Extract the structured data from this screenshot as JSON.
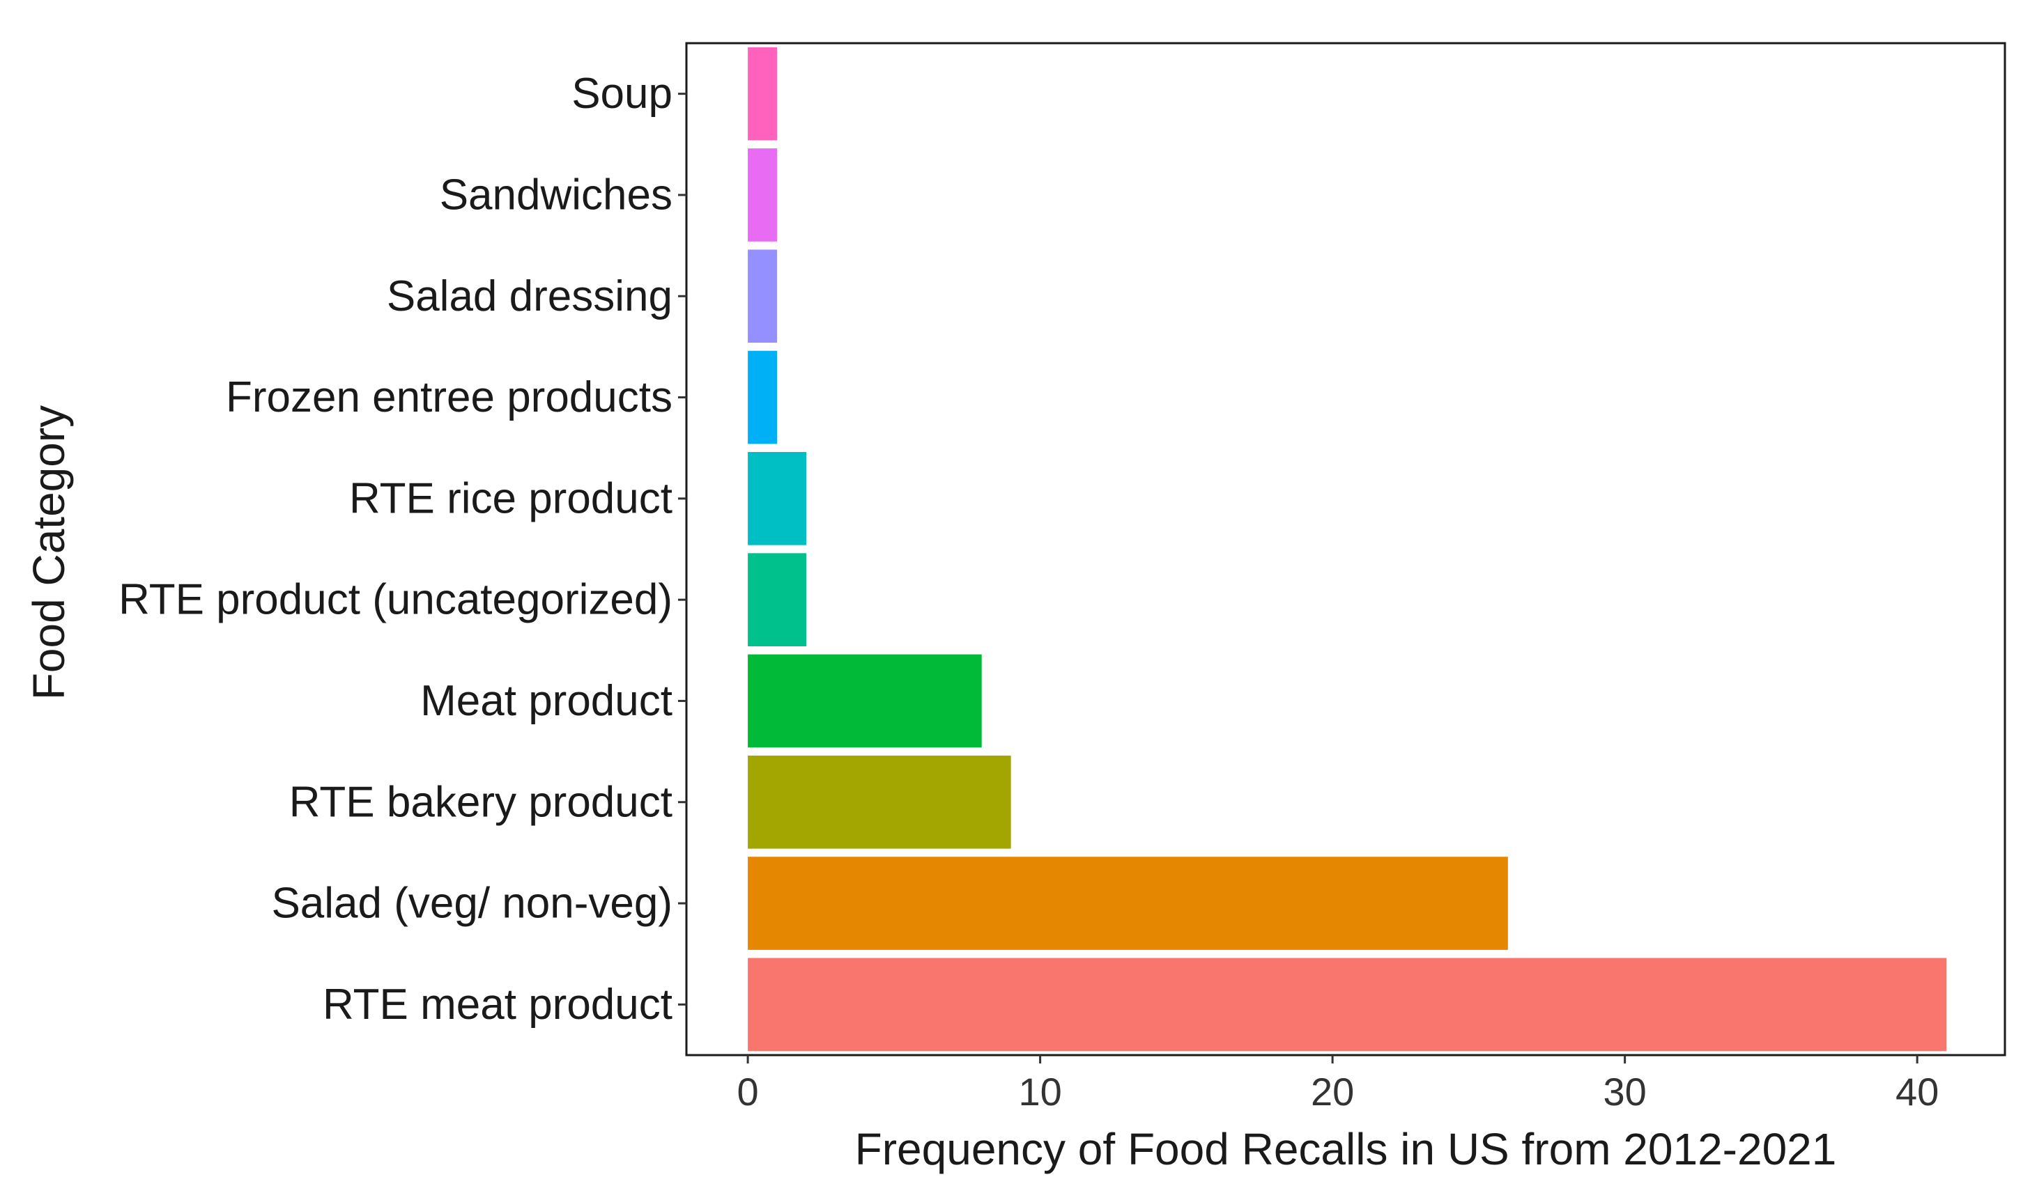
{
  "chart_data": {
    "type": "bar",
    "orientation": "horizontal",
    "title": "",
    "xlabel": "Frequency of Food Recalls in US from 2012-2021",
    "ylabel": "Food Category",
    "xlim": [
      -2.1,
      43.0
    ],
    "xticks": [
      0,
      10,
      20,
      30,
      40
    ],
    "xtick_labels": [
      "0",
      "10",
      "20",
      "30",
      "40"
    ],
    "grid": false,
    "legend": "none",
    "categories": [
      "RTE meat product",
      "Salad (veg/ non-veg)",
      "RTE bakery product",
      "Meat product",
      "RTE product (uncategorized)",
      "RTE rice product",
      "Frozen entree products",
      "Salad dressing",
      "Sandwiches",
      "Soup"
    ],
    "values": [
      41,
      26,
      9,
      8,
      2,
      2,
      1,
      1,
      1,
      1
    ],
    "colors": [
      "#F8766D",
      "#E58700",
      "#A3A500",
      "#00BA38",
      "#00C08B",
      "#00BFC4",
      "#00B0F6",
      "#9590FF",
      "#E76BF3",
      "#FF62BC"
    ]
  }
}
